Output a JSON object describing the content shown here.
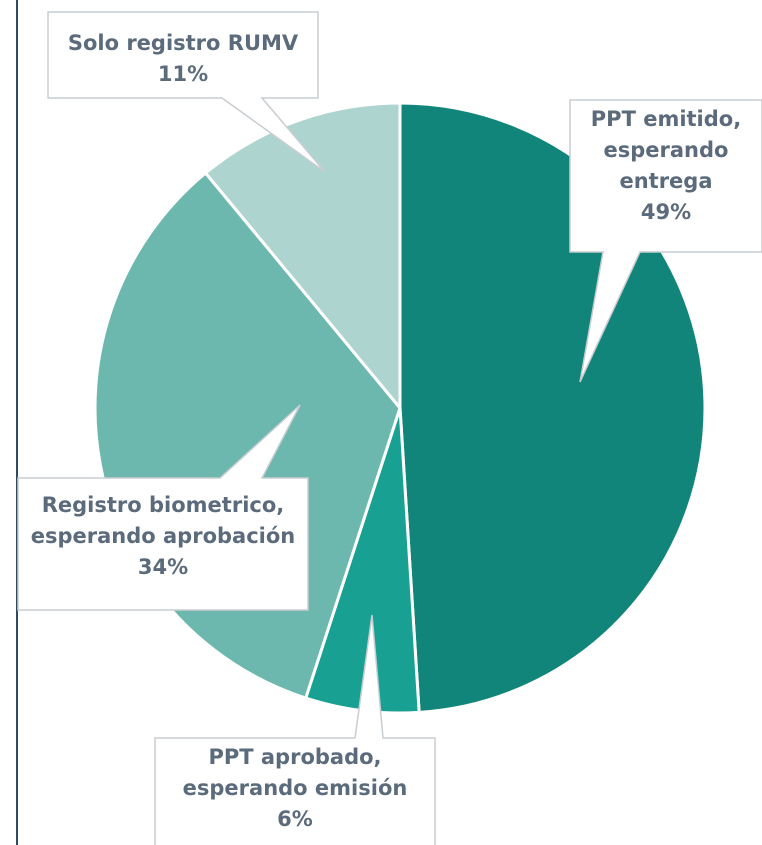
{
  "chart_data": {
    "type": "pie",
    "categories": [
      "PPT emitido, esperando entrega",
      "PPT aprobado, esperando emisión",
      "Registro biometrico, esperando aprobación",
      "Solo registro RUMV"
    ],
    "values": [
      49,
      6,
      34,
      11
    ],
    "value_labels": [
      "49%",
      "6%",
      "34%",
      "11%"
    ],
    "colors": [
      "#12857a",
      "#18a093",
      "#6cb8af",
      "#aed4cf"
    ]
  }
}
